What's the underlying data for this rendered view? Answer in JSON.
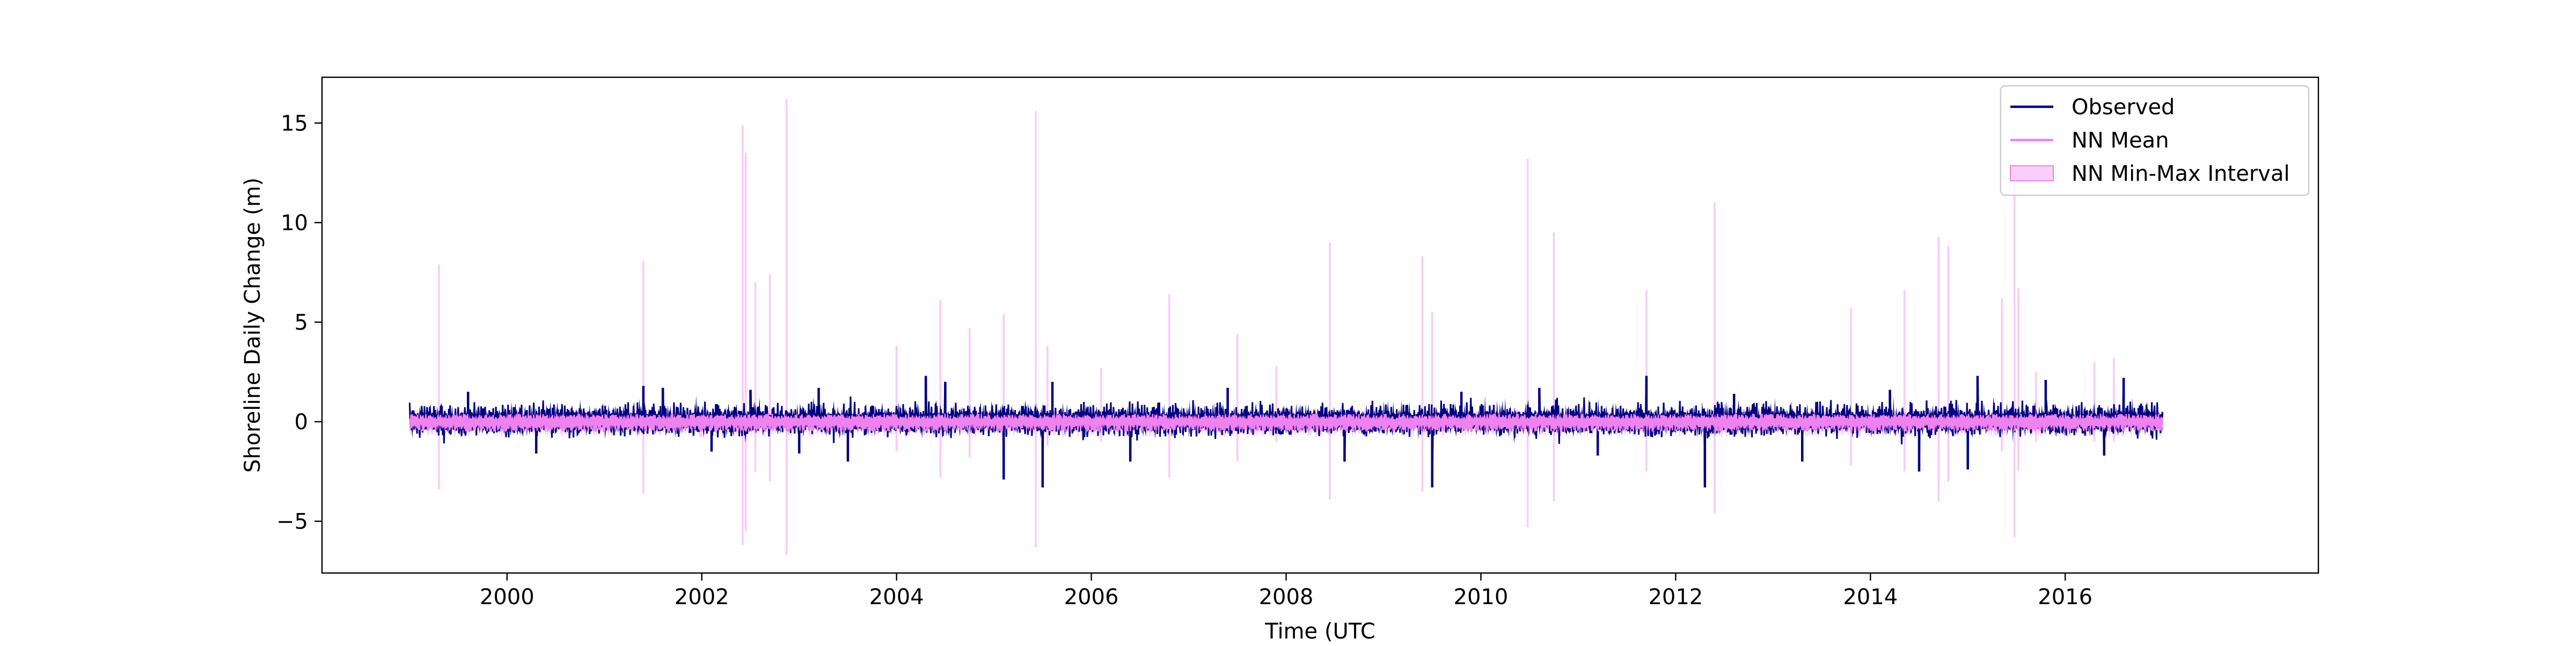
{
  "chart_data": {
    "type": "line",
    "title": "",
    "xlabel": "Time (UTC",
    "ylabel": "Shoreline Daily Change (m)",
    "xlim": [
      1998.1,
      2018.6
    ],
    "ylim": [
      -7.6,
      17.3
    ],
    "x_ticks": [
      2000,
      2002,
      2004,
      2006,
      2008,
      2010,
      2012,
      2014,
      2016
    ],
    "x_tick_labels": [
      "2000",
      "2002",
      "2004",
      "2006",
      "2008",
      "2010",
      "2012",
      "2014",
      "2016"
    ],
    "y_ticks": [
      -5,
      0,
      5,
      10,
      15
    ],
    "y_tick_labels": [
      "−5",
      "0",
      "5",
      "10",
      "15"
    ],
    "x_range": [
      1999.0,
      2017.0
    ],
    "grid": false,
    "legend_position": "upper-right",
    "legend": [
      {
        "label": "Observed",
        "kind": "line",
        "color": "#000080"
      },
      {
        "label": "NN Mean",
        "kind": "line",
        "color": "#ee82ee"
      },
      {
        "label": "NN Min-Max Interval",
        "kind": "patch",
        "color": "#ee82ee"
      }
    ],
    "series": [
      {
        "name": "Observed",
        "color": "#000080",
        "envelope_typical": [
          -0.7,
          0.9
        ],
        "points": [
          [
            1999.6,
            1.5
          ],
          [
            2000.3,
            -1.6
          ],
          [
            2001.4,
            1.8
          ],
          [
            2001.6,
            1.7
          ],
          [
            2002.1,
            -1.5
          ],
          [
            2002.5,
            1.6
          ],
          [
            2003.0,
            -1.6
          ],
          [
            2003.2,
            1.7
          ],
          [
            2003.5,
            -2.0
          ],
          [
            2004.3,
            2.3
          ],
          [
            2004.5,
            2.0
          ],
          [
            2005.1,
            -2.9
          ],
          [
            2005.5,
            -3.3
          ],
          [
            2005.6,
            2.0
          ],
          [
            2006.4,
            -2.0
          ],
          [
            2007.4,
            1.7
          ],
          [
            2008.6,
            -2.0
          ],
          [
            2009.5,
            -3.3
          ],
          [
            2009.8,
            1.5
          ],
          [
            2010.6,
            1.7
          ],
          [
            2011.2,
            -1.7
          ],
          [
            2011.7,
            2.3
          ],
          [
            2012.3,
            -3.3
          ],
          [
            2012.6,
            1.4
          ],
          [
            2013.3,
            -2.0
          ],
          [
            2014.2,
            1.6
          ],
          [
            2014.5,
            -2.5
          ],
          [
            2015.0,
            -2.4
          ],
          [
            2015.1,
            2.3
          ],
          [
            2015.8,
            2.1
          ],
          [
            2016.4,
            -1.7
          ],
          [
            2016.6,
            2.2
          ]
        ]
      },
      {
        "name": "NN Mean",
        "color": "#ee82ee",
        "envelope_typical": [
          -0.5,
          0.4
        ]
      },
      {
        "name": "NN Min-Max Interval",
        "color": "#ee82ee",
        "spikes": [
          [
            1999.3,
            7.9,
            -3.4
          ],
          [
            2001.4,
            8.1,
            -3.6
          ],
          [
            2002.42,
            14.9,
            -6.2
          ],
          [
            2002.45,
            13.5,
            -5.5
          ],
          [
            2002.55,
            7.0,
            -2.5
          ],
          [
            2002.7,
            7.4,
            -3.0
          ],
          [
            2002.87,
            16.2,
            -6.7
          ],
          [
            2004.0,
            3.8,
            -1.5
          ],
          [
            2004.45,
            6.1,
            -2.8
          ],
          [
            2004.75,
            4.7,
            -1.8
          ],
          [
            2005.1,
            5.4,
            -2.5
          ],
          [
            2005.43,
            15.6,
            -6.3
          ],
          [
            2005.55,
            3.8,
            -1.2
          ],
          [
            2006.1,
            2.7,
            -1.0
          ],
          [
            2006.8,
            6.4,
            -2.8
          ],
          [
            2007.5,
            4.4,
            -2.0
          ],
          [
            2007.9,
            2.8,
            -1.0
          ],
          [
            2008.45,
            9.0,
            -3.9
          ],
          [
            2009.4,
            8.3,
            -3.5
          ],
          [
            2009.5,
            5.5,
            -2.0
          ],
          [
            2010.48,
            13.2,
            -5.3
          ],
          [
            2010.75,
            9.5,
            -4.0
          ],
          [
            2011.7,
            6.6,
            -2.5
          ],
          [
            2012.4,
            11.0,
            -4.6
          ],
          [
            2013.8,
            5.7,
            -2.2
          ],
          [
            2014.35,
            6.6,
            -2.5
          ],
          [
            2014.7,
            9.3,
            -4.0
          ],
          [
            2014.8,
            8.8,
            -3.0
          ],
          [
            2015.35,
            6.2,
            -1.5
          ],
          [
            2015.48,
            12.1,
            -5.8
          ],
          [
            2015.52,
            6.7,
            -2.5
          ],
          [
            2015.7,
            2.5,
            -1.0
          ],
          [
            2016.3,
            3.0,
            -1.0
          ],
          [
            2016.5,
            3.2,
            -1.0
          ]
        ]
      }
    ]
  }
}
